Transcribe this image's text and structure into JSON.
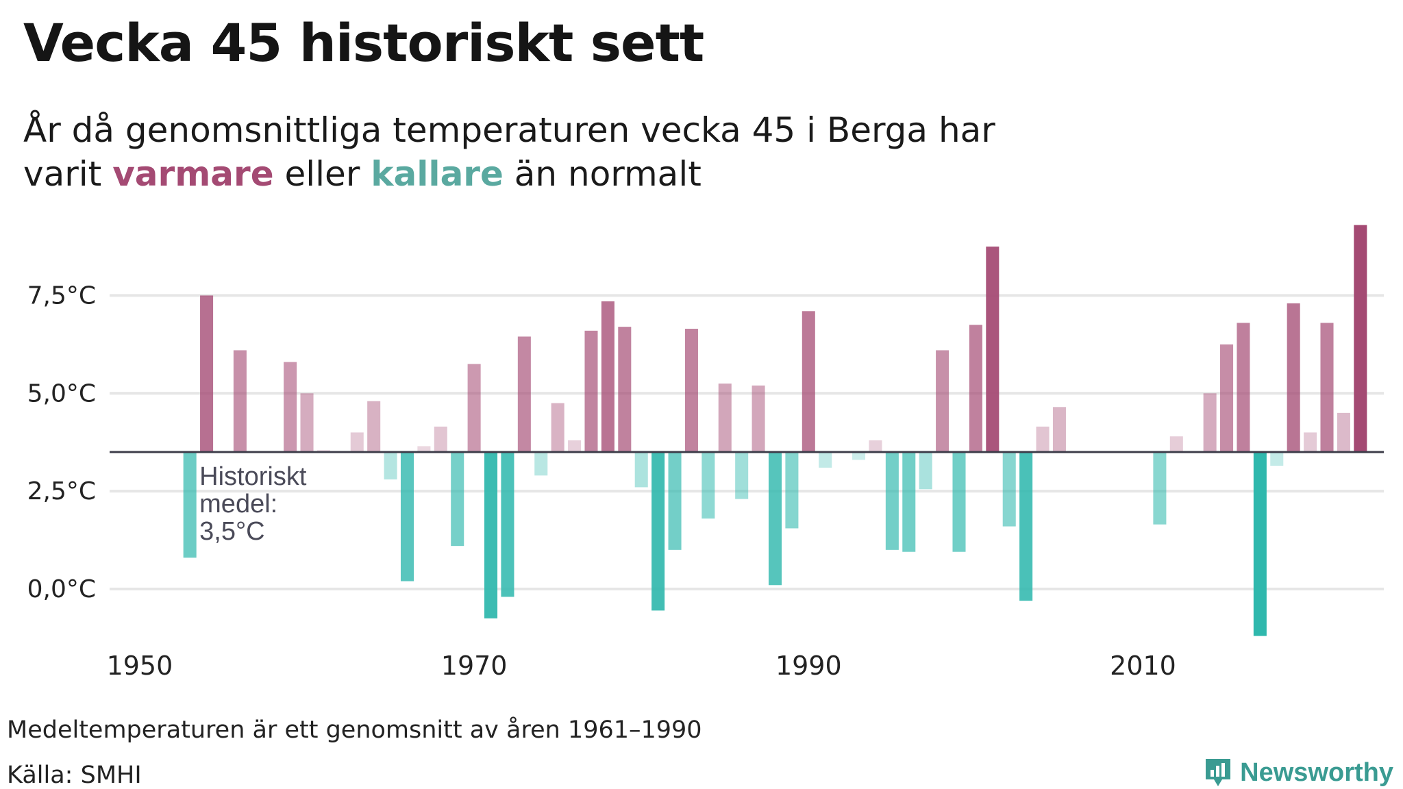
{
  "header": {
    "title": "Vecka 45 historiskt sett",
    "subtitle_part1": "År då genomsnittliga temperaturen vecka 45 i Berga har",
    "subtitle_part2": "varit",
    "subtitle_warm": "varmare",
    "subtitle_mid": "eller",
    "subtitle_cold": "kallare",
    "subtitle_end": "än normalt"
  },
  "annotation": {
    "line1": "Historiskt",
    "line2": "medel:",
    "line3": "3,5°C"
  },
  "footer": {
    "note": "Medeltemperaturen är ett genomsnitt av åren 1961–1990",
    "source": "Källa: SMHI",
    "brand": "Newsworthy"
  },
  "colors": {
    "warm": "#a44a73",
    "cold": "#2fb8ad",
    "baseline": "#3d3d4a",
    "grid": "#e6e6e6",
    "brand": "#3a9b92"
  },
  "chart_data": {
    "type": "bar",
    "title": "Vecka 45 historiskt sett",
    "baseline": 3.5,
    "ylim": [
      -1.4,
      9.8
    ],
    "xlim": [
      1948.2,
      2024.4
    ],
    "yticks": [
      {
        "value": 0,
        "label": "0,0°C"
      },
      {
        "value": 2.5,
        "label": "2,5°C"
      },
      {
        "value": 5,
        "label": "5,0°C"
      },
      {
        "value": 7.5,
        "label": "7,5°C"
      }
    ],
    "xticks": [
      {
        "value": 1950,
        "label": "1950"
      },
      {
        "value": 1970,
        "label": "1970"
      },
      {
        "value": 1990,
        "label": "1990"
      },
      {
        "value": 2010,
        "label": "2010"
      }
    ],
    "x": [
      1953,
      1954,
      1956,
      1959,
      1960,
      1961,
      1963,
      1964,
      1965,
      1966,
      1967,
      1968,
      1969,
      1970,
      1971,
      1972,
      1973,
      1974,
      1975,
      1976,
      1977,
      1978,
      1979,
      1980,
      1981,
      1982,
      1983,
      1984,
      1985,
      1986,
      1987,
      1988,
      1989,
      1990,
      1991,
      1993,
      1994,
      1995,
      1996,
      1997,
      1998,
      1999,
      2000,
      2001,
      2002,
      2003,
      2004,
      2005,
      2011,
      2012,
      2014,
      2015,
      2016,
      2017,
      2018,
      2019,
      2020,
      2021,
      2022,
      2023
    ],
    "values": [
      0.8,
      7.5,
      6.1,
      5.8,
      5.0,
      3.55,
      4.0,
      4.8,
      2.8,
      0.2,
      3.65,
      4.15,
      1.1,
      5.75,
      -0.75,
      -0.2,
      6.45,
      2.9,
      4.75,
      3.8,
      6.6,
      7.35,
      6.7,
      2.6,
      -0.55,
      1.0,
      6.65,
      1.8,
      5.25,
      2.3,
      5.2,
      0.1,
      1.55,
      7.1,
      3.1,
      3.3,
      3.8,
      1.0,
      0.95,
      2.55,
      6.1,
      0.95,
      6.75,
      8.75,
      1.6,
      -0.3,
      4.15,
      4.65,
      1.65,
      3.9,
      5.0,
      6.25,
      6.8,
      -1.2,
      3.15,
      7.3,
      4.0,
      6.8,
      4.5,
      9.3
    ]
  }
}
